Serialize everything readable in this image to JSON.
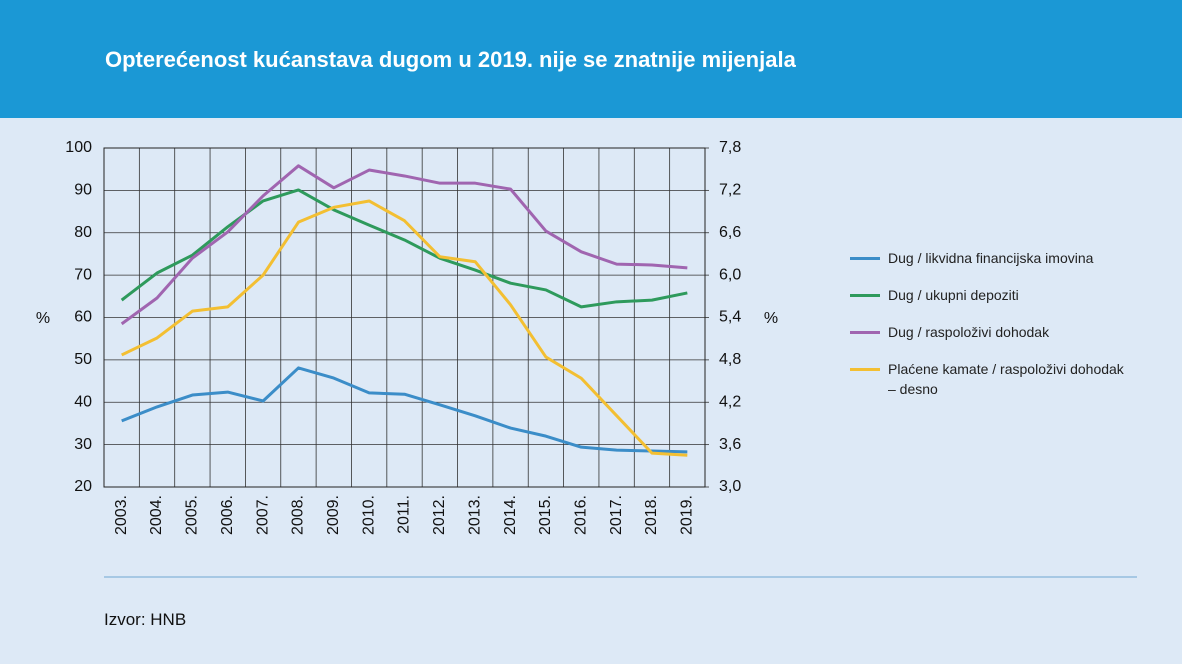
{
  "chart_data": {
    "type": "line",
    "title": "Opterećenost kućanstava dugom u 2019. nije se znatnije mijenjala",
    "y_label": "%",
    "y2_label": "%",
    "source": "Izvor: HNB",
    "categories": [
      "2003.",
      "2004.",
      "2005.",
      "2006.",
      "2007.",
      "2008.",
      "2009.",
      "2010.",
      "2011.",
      "2012.",
      "2013.",
      "2014.",
      "2015.",
      "2016.",
      "2017.",
      "2018.",
      "2019."
    ],
    "series": [
      {
        "name": "Dug / likvidna financijska imovina",
        "color": "#3b8dc8",
        "values": [
          35.6,
          38.9,
          41.7,
          42.4,
          40.3,
          48.1,
          45.7,
          42.2,
          41.9,
          39.4,
          36.8,
          33.9,
          32.0,
          29.4,
          28.7,
          28.5,
          28.3
        ]
      },
      {
        "name": "Dug / ukupni depoziti",
        "color": "#2e9a5c",
        "values": [
          64.1,
          70.5,
          74.7,
          81.4,
          87.5,
          90.1,
          85.4,
          81.8,
          78.3,
          74.0,
          71.2,
          68.1,
          66.5,
          62.5,
          63.7,
          64.1,
          65.8
        ]
      },
      {
        "name": "Dug / raspoloživi dohodak",
        "color": "#a065b0",
        "values": [
          58.5,
          64.6,
          74.0,
          80.2,
          88.7,
          95.8,
          90.6,
          94.8,
          93.4,
          91.7,
          91.7,
          90.3,
          80.4,
          75.5,
          72.6,
          72.4,
          71.7
        ]
      },
      {
        "name": "Plaćene kamate / raspoloživi dohodak – desno",
        "color": "#f3bf32",
        "axis": "y2",
        "values": [
          4.87,
          5.11,
          5.49,
          5.55,
          6.0,
          6.75,
          6.96,
          7.05,
          6.77,
          6.26,
          6.19,
          5.58,
          4.84,
          4.54,
          4.01,
          3.48,
          3.45
        ]
      }
    ],
    "ylim": [
      20,
      100
    ],
    "yticks": [
      20,
      30,
      40,
      50,
      60,
      70,
      80,
      90,
      100
    ],
    "y2lim": [
      3.0,
      7.8
    ],
    "y2ticks": [
      {
        "value": 3.0,
        "label": "3,0"
      },
      {
        "value": 3.6,
        "label": "3,6"
      },
      {
        "value": 4.2,
        "label": "4,2"
      },
      {
        "value": 4.8,
        "label": "4,8"
      },
      {
        "value": 5.4,
        "label": "5,4"
      },
      {
        "value": 6.0,
        "label": "6,0"
      },
      {
        "value": 6.6,
        "label": "6,6"
      },
      {
        "value": 7.2,
        "label": "7,2"
      },
      {
        "value": 7.8,
        "label": "7,8"
      }
    ],
    "grid": true
  }
}
